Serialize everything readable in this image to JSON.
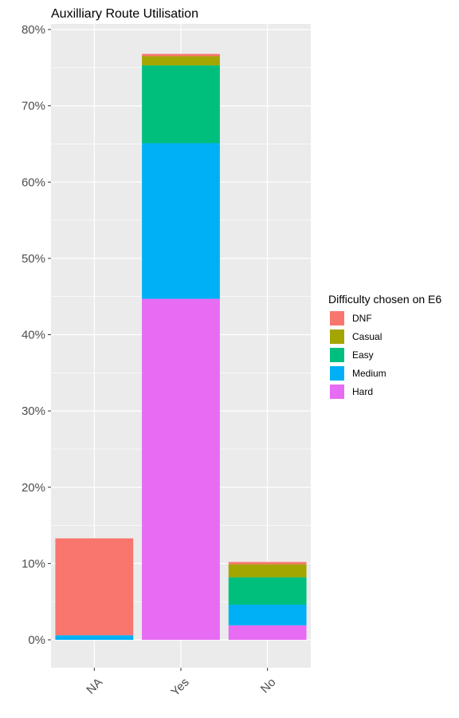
{
  "chart_data": {
    "type": "bar",
    "stacked": true,
    "title": "Auxilliary Route Utilisation",
    "xlabel": "",
    "ylabel": "",
    "categories": [
      "NA",
      "Yes",
      "No"
    ],
    "ylim": [
      0,
      0.8
    ],
    "yticks": [
      0,
      0.1,
      0.2,
      0.3,
      0.4,
      0.5,
      0.6,
      0.7,
      0.8
    ],
    "ytick_labels": [
      "0%",
      "10%",
      "20%",
      "30%",
      "40%",
      "50%",
      "60%",
      "70%",
      "80%"
    ],
    "grid": true,
    "legend": {
      "title": "Difficulty chosen on E6",
      "position": "right"
    },
    "series": [
      {
        "name": "DNF",
        "color": "#F8766D",
        "values": [
          0.127,
          0.003,
          0.003
        ]
      },
      {
        "name": "Casual",
        "color": "#A3A500",
        "values": [
          0.0,
          0.012,
          0.017
        ]
      },
      {
        "name": "Easy",
        "color": "#00BF7D",
        "values": [
          0.0,
          0.102,
          0.036
        ]
      },
      {
        "name": "Medium",
        "color": "#00B0F6",
        "values": [
          0.006,
          0.204,
          0.027
        ]
      },
      {
        "name": "Hard",
        "color": "#E76BF3",
        "values": [
          0.0,
          0.447,
          0.019
        ]
      }
    ]
  }
}
